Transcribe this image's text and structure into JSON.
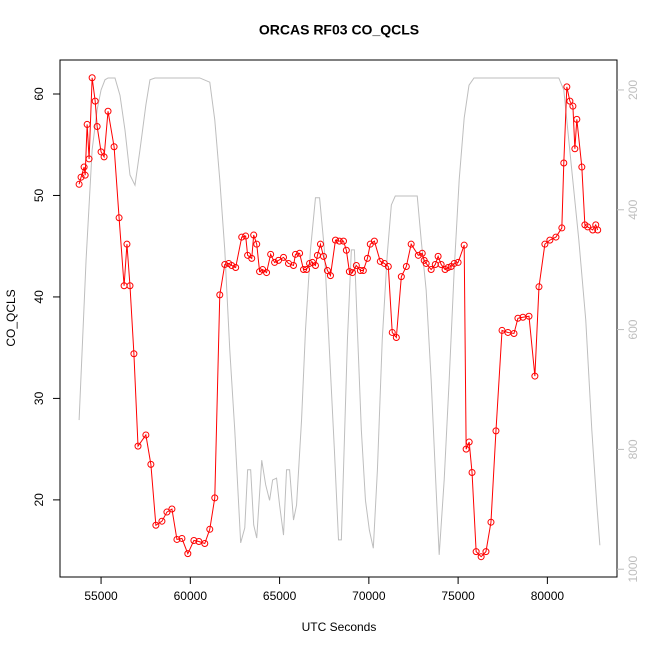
{
  "chart_data": {
    "type": "line",
    "title": "ORCAS RF03 CO_QCLS",
    "x_label": "UTC Seconds",
    "y_label": "CO_QCLS",
    "xlim": [
      52700,
      83900
    ],
    "xticks": [
      55000,
      60000,
      65000,
      70000,
      75000,
      80000
    ],
    "ylim": [
      12.4,
      63.35
    ],
    "yticks": [
      20,
      30,
      40,
      50,
      60
    ],
    "y2lim": [
      1013,
      150
    ],
    "y2ticks": [
      200,
      400,
      600,
      800,
      1000
    ],
    "series": [
      {
        "color": "#ff0000",
        "markers": true,
        "x": [
          53770,
          53880,
          54050,
          54110,
          54220,
          54330,
          54500,
          54670,
          54780,
          55000,
          55170,
          55390,
          55730,
          56010,
          56290,
          56450,
          56620,
          56840,
          57070,
          57510,
          57790,
          58070,
          58410,
          58690,
          58970,
          59250,
          59530,
          59860,
          60200,
          60480,
          60810,
          61090,
          61370,
          61650,
          61930,
          62150,
          62320,
          62540,
          62880,
          63100,
          63210,
          63440,
          63550,
          63720,
          63880,
          64050,
          64270,
          64500,
          64720,
          64940,
          65220,
          65500,
          65780,
          65890,
          66120,
          66340,
          66510,
          66680,
          66840,
          67010,
          67120,
          67290,
          67460,
          67680,
          67850,
          68130,
          68350,
          68580,
          68740,
          68910,
          69080,
          69300,
          69530,
          69690,
          69920,
          70080,
          70310,
          70640,
          70870,
          71090,
          71310,
          71540,
          71820,
          72100,
          72370,
          72770,
          72990,
          73100,
          73210,
          73490,
          73720,
          73880,
          74050,
          74270,
          74440,
          74610,
          74780,
          75000,
          75340,
          75450,
          75620,
          75780,
          76010,
          76290,
          76560,
          76840,
          77120,
          77460,
          77790,
          78130,
          78350,
          78630,
          78970,
          79300,
          79530,
          79860,
          80140,
          80480,
          80810,
          80920,
          81090,
          81260,
          81430,
          81540,
          81650,
          81930,
          82100,
          82260,
          82540,
          82710,
          82820
        ],
        "values": [
          51.1,
          51.8,
          52.8,
          52.0,
          57.0,
          53.6,
          61.6,
          59.3,
          56.8,
          54.3,
          53.8,
          58.3,
          54.8,
          47.8,
          41.1,
          45.2,
          41.1,
          34.4,
          25.3,
          26.4,
          23.5,
          17.5,
          17.9,
          18.8,
          19.1,
          16.1,
          16.2,
          14.7,
          16.0,
          15.9,
          15.7,
          17.1,
          20.2,
          40.2,
          43.2,
          43.3,
          43.1,
          42.9,
          45.9,
          46.0,
          44.1,
          43.8,
          46.1,
          45.2,
          42.5,
          42.7,
          42.4,
          44.2,
          43.4,
          43.6,
          43.9,
          43.3,
          43.1,
          44.2,
          44.3,
          42.7,
          42.7,
          43.3,
          43.4,
          43.1,
          44.1,
          45.2,
          44.0,
          42.6,
          42.1,
          45.6,
          45.5,
          45.5,
          44.6,
          42.5,
          42.4,
          43.1,
          42.6,
          42.6,
          43.8,
          45.2,
          45.5,
          43.5,
          43.3,
          43.0,
          36.5,
          36.0,
          42.0,
          43.0,
          45.2,
          44.1,
          44.3,
          43.6,
          43.3,
          42.7,
          43.2,
          44.0,
          43.2,
          42.7,
          42.9,
          43.0,
          43.3,
          43.4,
          45.1,
          25.0,
          25.7,
          22.7,
          14.9,
          14.4,
          14.9,
          17.8,
          26.8,
          36.7,
          36.5,
          36.4,
          37.9,
          38.0,
          38.1,
          32.2,
          41.0,
          45.2,
          45.6,
          45.9,
          46.8,
          53.2,
          60.7,
          59.3,
          58.8,
          54.6,
          57.5,
          52.8,
          47.1,
          46.9,
          46.6,
          47.1,
          46.6
        ]
      },
      {
        "color": "#bebebe",
        "axis": "y2",
        "x": [
          53770,
          54160,
          54500,
          54780,
          55000,
          55220,
          55390,
          55780,
          56060,
          56340,
          56620,
          56900,
          57180,
          57510,
          57740,
          58020,
          60530,
          61090,
          61370,
          61650,
          61930,
          62210,
          62490,
          62820,
          63050,
          63210,
          63380,
          63550,
          63720,
          64000,
          64220,
          64440,
          64610,
          64830,
          65000,
          65220,
          65390,
          65560,
          65780,
          65950,
          66230,
          66450,
          66730,
          67010,
          67240,
          67510,
          67790,
          68070,
          68300,
          68460,
          68630,
          68800,
          69020,
          69190,
          69360,
          69580,
          69810,
          70030,
          70250,
          70480,
          70750,
          71030,
          71260,
          71480,
          72710,
          72930,
          73210,
          73490,
          73770,
          73940,
          74220,
          74500,
          74780,
          75060,
          75340,
          75610,
          75890,
          80640,
          80920,
          81310,
          81760,
          82150,
          82490,
          82770,
          82940
        ],
        "values": [
          751,
          484,
          300,
          233,
          200,
          183,
          180,
          180,
          209,
          267,
          342,
          359,
          300,
          225,
          183,
          180,
          180,
          187,
          250,
          350,
          467,
          634,
          768,
          956,
          931,
          834,
          834,
          926,
          948,
          818,
          859,
          885,
          851,
          848,
          893,
          943,
          834,
          834,
          918,
          893,
          751,
          601,
          467,
          380,
          380,
          467,
          634,
          801,
          951,
          951,
          785,
          617,
          467,
          467,
          601,
          768,
          885,
          935,
          965,
          834,
          617,
          475,
          392,
          377,
          377,
          450,
          534,
          684,
          868,
          976,
          851,
          684,
          501,
          350,
          247,
          192,
          180,
          180,
          200,
          317,
          450,
          584,
          768,
          893,
          960
        ]
      }
    ]
  }
}
